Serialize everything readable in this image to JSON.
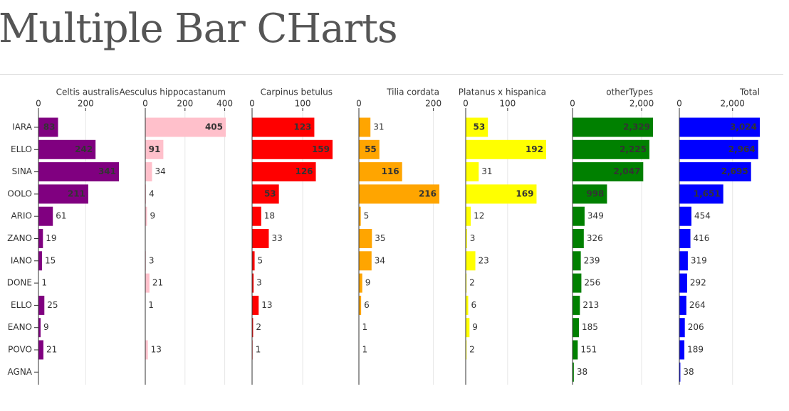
{
  "chart_data": {
    "type": "bar",
    "title": "Multiple Bar CHarts",
    "categories": [
      "IARA",
      "ELLO",
      "SINA",
      "OOLO",
      "ARIO",
      "ZANO",
      "IANO",
      "DONE",
      "ELLO",
      "EANO",
      "POVO",
      "AGNA"
    ],
    "grid": true,
    "series": [
      {
        "name": "Celtis australis",
        "color": "#800080",
        "values": [
          83,
          242,
          341,
          211,
          61,
          19,
          15,
          1,
          25,
          9,
          21,
          null
        ],
        "xlim": [
          0,
          341
        ],
        "xticks": [
          0,
          200
        ]
      },
      {
        "name": "Aesculus hippocastanum",
        "color": "#ffc0cb",
        "values": [
          405,
          91,
          34,
          4,
          9,
          null,
          3,
          21,
          1,
          null,
          13,
          null
        ],
        "xlim": [
          0,
          405
        ],
        "xticks": [
          0,
          200,
          400
        ]
      },
      {
        "name": "Carpinus betulus",
        "color": "#ff0000",
        "values": [
          123,
          159,
          126,
          53,
          18,
          33,
          5,
          3,
          13,
          2,
          1,
          null
        ],
        "xlim": [
          0,
          159
        ],
        "xticks": [
          0,
          100
        ]
      },
      {
        "name": "Tilia cordata",
        "color": "#ffa500",
        "values": [
          31,
          55,
          116,
          216,
          5,
          35,
          34,
          9,
          6,
          1,
          1,
          null
        ],
        "xlim": [
          0,
          216
        ],
        "xticks": [
          0,
          200
        ]
      },
      {
        "name": "Platanus x hispanica",
        "color": "#ffff00",
        "values": [
          53,
          192,
          31,
          169,
          12,
          3,
          23,
          2,
          6,
          9,
          2,
          null
        ],
        "xlim": [
          0,
          192
        ],
        "xticks": [
          0,
          100
        ]
      },
      {
        "name": "otherTypes",
        "color": "#008000",
        "values": [
          2329,
          2225,
          2047,
          998,
          349,
          326,
          239,
          256,
          213,
          185,
          151,
          38
        ],
        "value_labels": [
          "2,329",
          "2,225",
          "2,047",
          "998",
          "349",
          "326",
          "239",
          "256",
          "213",
          "185",
          "151",
          "38"
        ],
        "xlim": [
          0,
          2329
        ],
        "xticks": [
          0,
          {
            "value": 2000,
            "label": "2,000"
          }
        ]
      },
      {
        "name": "Total",
        "color": "#0000ff",
        "values": [
          3024,
          2964,
          2695,
          1651,
          454,
          416,
          319,
          292,
          264,
          206,
          189,
          38
        ],
        "value_labels": [
          "3,024",
          "2,964",
          "2,695",
          "1,651",
          "454",
          "416",
          "319",
          "292",
          "264",
          "206",
          "189",
          "38"
        ],
        "xlim": [
          0,
          3024
        ],
        "xticks": [
          0,
          {
            "value": 2000,
            "label": "2,000"
          }
        ]
      }
    ]
  }
}
